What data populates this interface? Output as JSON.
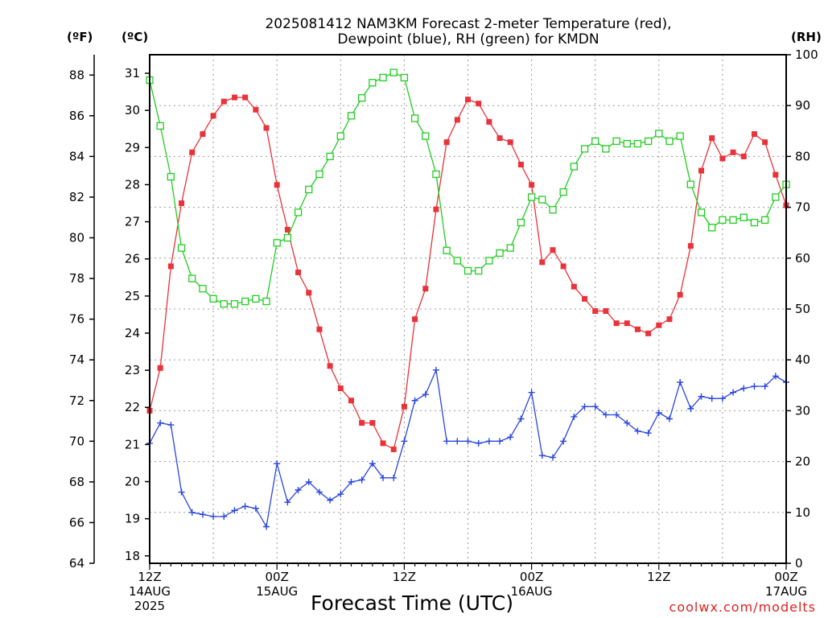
{
  "chart_data": {
    "type": "line",
    "title_line1": "2025081412 NAM3KM Forecast 2-meter Temperature (red),",
    "title_line2": "Dewpoint (blue), RH (green) for KMDN",
    "xlabel": "Forecast Time (UTC)",
    "credit": "coolwx.com/modelts",
    "units": {
      "f": "(ºF)",
      "c": "(ºC)",
      "rh": "(RH)"
    },
    "x_start": "2025-08-14T12Z",
    "x_step_hours": 1,
    "x_ticks": [
      {
        "line1": "12Z",
        "line2": "14AUG",
        "line3": "2025"
      },
      {
        "line1": "00Z",
        "line2": "15AUG",
        "line3": ""
      },
      {
        "line1": "12Z",
        "line2": "",
        "line3": ""
      },
      {
        "line1": "00Z",
        "line2": "16AUG",
        "line3": ""
      },
      {
        "line1": "12Z",
        "line2": "",
        "line3": ""
      },
      {
        "line1": "00Z",
        "line2": "17AUG",
        "line3": ""
      }
    ],
    "y_left_celsius": {
      "range": [
        17.8,
        31.5
      ],
      "ticks": [
        "18",
        "19",
        "20",
        "21",
        "22",
        "23",
        "24",
        "25",
        "26",
        "27",
        "28",
        "29",
        "30",
        "31"
      ]
    },
    "y_left_fahrenheit": {
      "range": [
        64,
        89
      ],
      "ticks": [
        "64",
        "66",
        "68",
        "70",
        "72",
        "74",
        "76",
        "78",
        "80",
        "82",
        "84",
        "86",
        "88"
      ]
    },
    "y_right_rh": {
      "range": [
        0,
        100
      ],
      "ticks": [
        "0",
        "10",
        "20",
        "30",
        "40",
        "50",
        "60",
        "70",
        "80",
        "90",
        "100"
      ]
    },
    "grid": true,
    "colors": {
      "temperature": "#e8333a",
      "dewpoint": "#2a46e0",
      "rh": "#22cc22",
      "credit": "#dd2222"
    },
    "series": [
      {
        "name": "Temperature",
        "unit": "F",
        "values": [
          71.5,
          73.6,
          78.6,
          81.7,
          84.2,
          85.1,
          86.0,
          86.7,
          86.9,
          86.9,
          86.3,
          85.4,
          82.6,
          80.4,
          78.3,
          77.3,
          75.5,
          73.7,
          72.6,
          72.0,
          70.9,
          70.9,
          69.9,
          69.6,
          71.7,
          76.0,
          77.5,
          81.4,
          84.7,
          85.8,
          86.8,
          86.6,
          85.7,
          84.9,
          84.7,
          83.6,
          82.6,
          78.8,
          79.4,
          78.6,
          77.6,
          77.0,
          76.4,
          76.4,
          75.8,
          75.8,
          75.5,
          75.3,
          75.7,
          76.0,
          77.2,
          79.6,
          83.3,
          84.9,
          83.9,
          84.2,
          84.0,
          85.1,
          84.7,
          83.1,
          81.6
        ]
      },
      {
        "name": "Dewpoint",
        "unit": "F",
        "values": [
          69.9,
          70.9,
          70.8,
          67.5,
          66.5,
          66.4,
          66.3,
          66.3,
          66.6,
          66.8,
          66.7,
          65.8,
          68.9,
          67.0,
          67.6,
          68.0,
          67.5,
          67.1,
          67.4,
          68.0,
          68.1,
          68.9,
          68.2,
          68.2,
          70.0,
          72.0,
          72.3,
          73.5,
          70.0,
          70.0,
          70.0,
          69.9,
          70.0,
          70.0,
          70.2,
          71.1,
          72.4,
          69.3,
          69.2,
          70.0,
          71.2,
          71.7,
          71.7,
          71.3,
          71.3,
          70.9,
          70.5,
          70.4,
          71.4,
          71.1,
          72.9,
          71.6,
          72.2,
          72.1,
          72.1,
          72.4,
          72.6,
          72.7,
          72.7,
          73.2,
          72.9
        ]
      },
      {
        "name": "RH",
        "unit": "%",
        "values": [
          95,
          86,
          76,
          62,
          56,
          54,
          52,
          51,
          51,
          51.5,
          52,
          51.5,
          63,
          64,
          69,
          73.5,
          76.5,
          80,
          84,
          88,
          91.5,
          94.5,
          95.5,
          96.5,
          95.5,
          87.5,
          84,
          76.5,
          61.5,
          59.5,
          57.5,
          57.5,
          59.5,
          61,
          62,
          67,
          72,
          71.5,
          69.5,
          73,
          78,
          81.5,
          83,
          81.5,
          83,
          82.5,
          82.5,
          83,
          84.5,
          83,
          84,
          74.5,
          69,
          66,
          67.5,
          67.5,
          68,
          67,
          67.5,
          72,
          74.5
        ]
      }
    ]
  }
}
